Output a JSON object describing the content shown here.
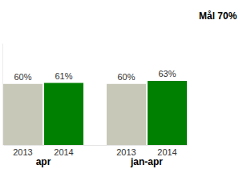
{
  "chart_data": {
    "type": "bar",
    "annotation": "Mål 70%",
    "categories": [
      "apr",
      "jan-apr"
    ],
    "series": [
      {
        "name": "2013",
        "color": "#c8c8b9",
        "values": [
          60,
          60
        ],
        "value_labels": [
          "60%",
          "60%"
        ]
      },
      {
        "name": "2014",
        "color": "#008000",
        "values": [
          61,
          63
        ],
        "value_labels": [
          "61%",
          "63%"
        ]
      }
    ],
    "ylim": [
      0,
      100
    ],
    "data_labels": true,
    "tick_labels": "x"
  }
}
